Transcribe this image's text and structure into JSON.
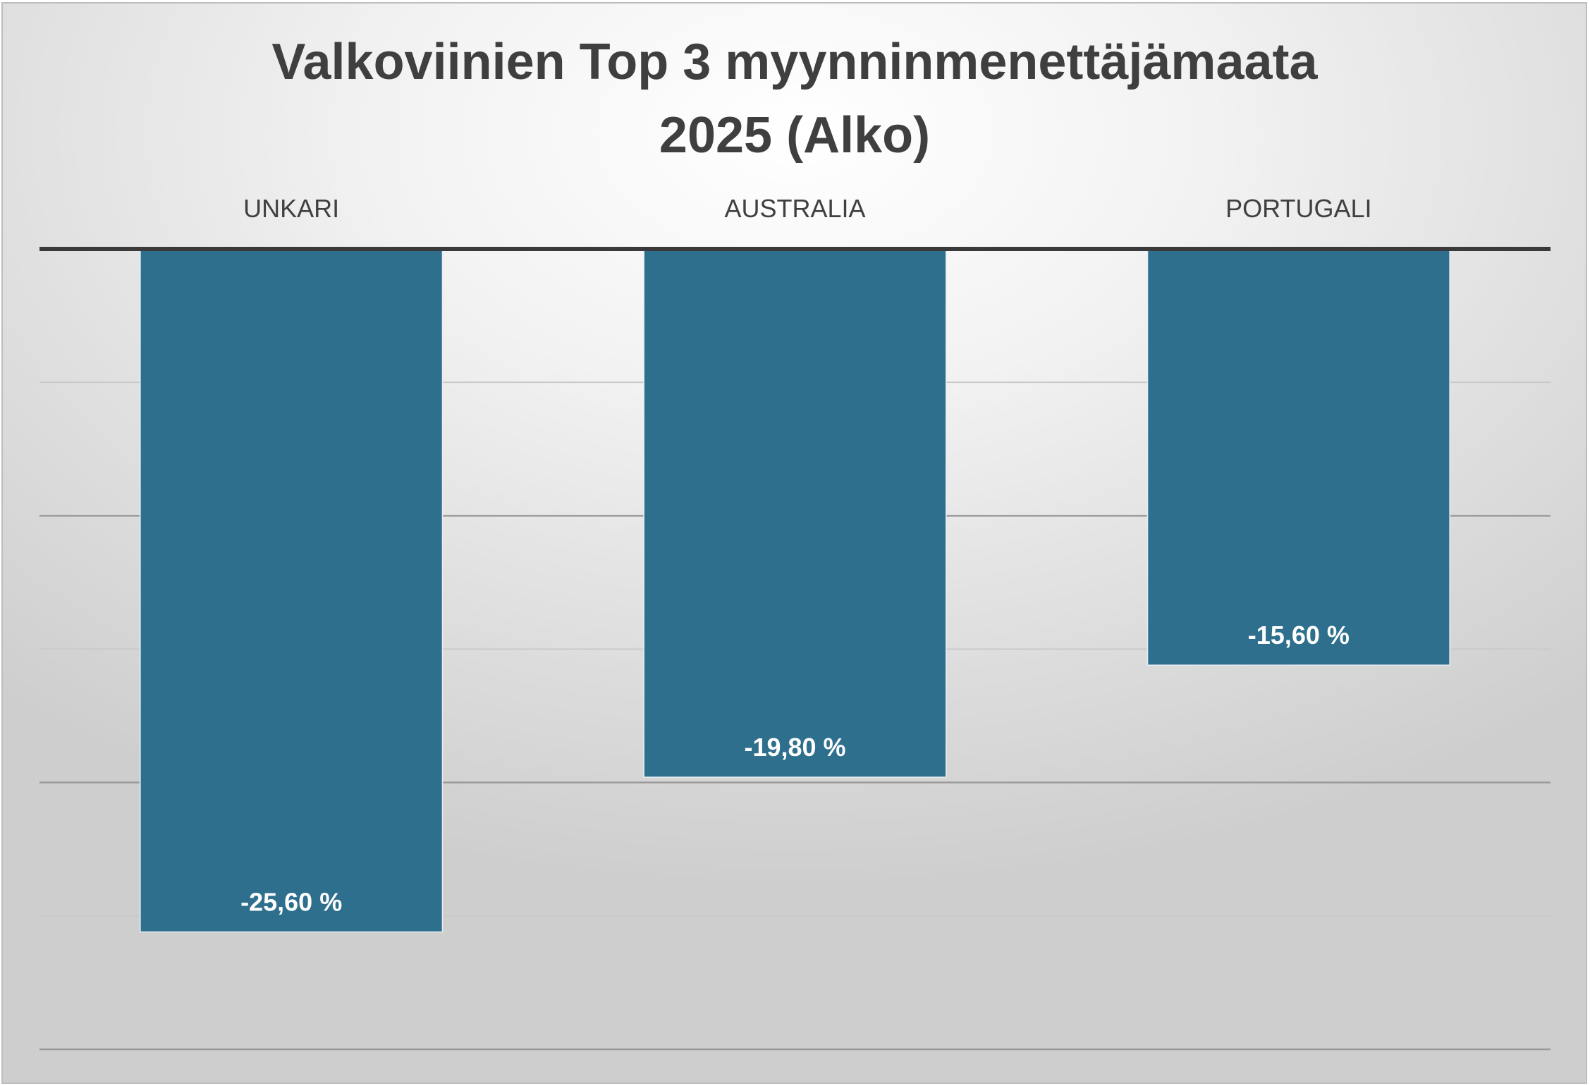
{
  "chart_data": {
    "type": "bar",
    "title": "Valkoviinien Top 3 myynninmenettäjämaata 2025 (Alko)",
    "title_lines": [
      "Valkoviinien Top 3 myynninmenettäjämaata",
      "2025 (Alko)"
    ],
    "categories": [
      "UNKARI",
      "AUSTRALIA",
      "PORTUGALI"
    ],
    "values": [
      -25.6,
      -19.8,
      -15.6
    ],
    "data_labels": [
      "-25,60 %",
      "-19,80 %",
      "-15,60 %"
    ],
    "ylim": [
      -30,
      0
    ],
    "gridlines": [
      -5,
      -10,
      -15,
      -20,
      -25,
      -30
    ],
    "grid": true,
    "bar_color": "#2f6f8e",
    "axis_color": "#3a3a3a"
  }
}
